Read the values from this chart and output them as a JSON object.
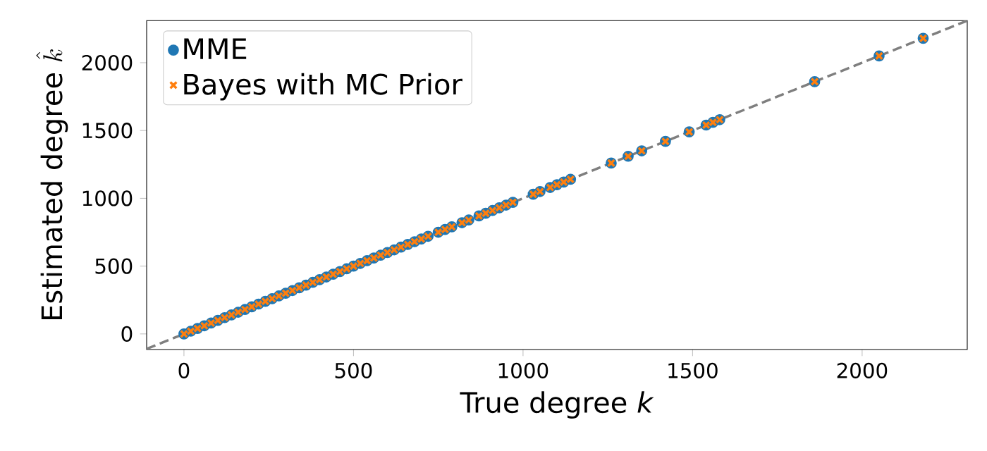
{
  "chart_data": {
    "type": "scatter",
    "xlabel": "True degree *k*",
    "ylabel": "\\text{Estimated degree }\\hat{k}",
    "xlim": [
      -110,
      2310
    ],
    "ylim": [
      -115,
      2310
    ],
    "xticks": [
      0,
      500,
      1000,
      1500,
      2000
    ],
    "yticks": [
      0,
      500,
      1000,
      1500,
      2000
    ],
    "legend": "top left",
    "series": [
      {
        "name": "MME",
        "color": "#1f77b4",
        "marker": "circle",
        "x": [
          0,
          20,
          40,
          60,
          80,
          100,
          120,
          140,
          160,
          180,
          200,
          220,
          240,
          260,
          280,
          300,
          320,
          340,
          360,
          380,
          400,
          420,
          440,
          460,
          480,
          500,
          520,
          540,
          560,
          580,
          600,
          620,
          640,
          660,
          680,
          700,
          720,
          750,
          770,
          790,
          820,
          840,
          870,
          890,
          910,
          930,
          950,
          970,
          1030,
          1050,
          1080,
          1100,
          1120,
          1140,
          1260,
          1310,
          1350,
          1420,
          1490,
          1540,
          1560,
          1580,
          1860,
          2050,
          2180
        ],
        "values": [
          0,
          20,
          40,
          60,
          80,
          100,
          120,
          140,
          160,
          180,
          200,
          220,
          240,
          260,
          280,
          300,
          320,
          340,
          360,
          380,
          400,
          420,
          440,
          460,
          480,
          500,
          520,
          540,
          560,
          580,
          600,
          620,
          640,
          660,
          680,
          700,
          720,
          750,
          770,
          790,
          820,
          840,
          870,
          890,
          910,
          930,
          950,
          970,
          1030,
          1050,
          1080,
          1100,
          1120,
          1140,
          1260,
          1310,
          1350,
          1420,
          1490,
          1540,
          1560,
          1580,
          1860,
          2050,
          2180
        ]
      },
      {
        "name": "Bayes with MC Prior",
        "color": "#ff7f0e",
        "marker": "cross",
        "x": [
          0,
          20,
          40,
          60,
          80,
          100,
          120,
          140,
          160,
          180,
          200,
          220,
          240,
          260,
          280,
          300,
          320,
          340,
          360,
          380,
          400,
          420,
          440,
          460,
          480,
          500,
          520,
          540,
          560,
          580,
          600,
          620,
          640,
          660,
          680,
          700,
          720,
          750,
          770,
          790,
          820,
          840,
          870,
          890,
          910,
          930,
          950,
          970,
          1030,
          1050,
          1080,
          1100,
          1120,
          1140,
          1260,
          1310,
          1350,
          1420,
          1490,
          1540,
          1560,
          1580,
          1860,
          2050,
          2180
        ],
        "values": [
          0,
          20,
          40,
          60,
          80,
          100,
          120,
          140,
          160,
          180,
          200,
          220,
          240,
          260,
          280,
          300,
          320,
          340,
          360,
          380,
          400,
          420,
          440,
          460,
          480,
          500,
          520,
          540,
          560,
          580,
          600,
          620,
          640,
          660,
          680,
          700,
          720,
          750,
          770,
          790,
          820,
          840,
          870,
          890,
          910,
          930,
          950,
          970,
          1030,
          1050,
          1080,
          1100,
          1120,
          1140,
          1260,
          1310,
          1350,
          1420,
          1490,
          1540,
          1560,
          1580,
          1860,
          2050,
          2180
        ]
      },
      {
        "type": "line",
        "color": "#7f7f7f",
        "line_style": "dashed",
        "marker": "none",
        "x": [
          -110,
          2310
        ],
        "values": [
          -110,
          2310
        ]
      }
    ]
  }
}
